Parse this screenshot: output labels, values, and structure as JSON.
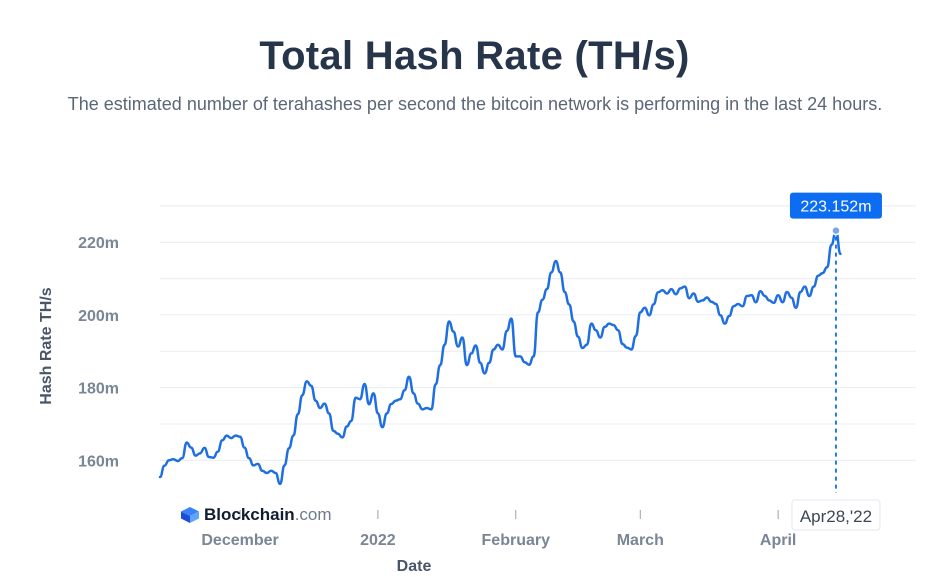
{
  "header": {
    "title": "Total Hash Rate (TH/s)",
    "subtitle": "The estimated number of terahashes per second the bitcoin network is performing in the last 24 hours."
  },
  "brand": {
    "name": "Blockchain",
    "tld": ".com",
    "icon": "blockchain-logo-icon"
  },
  "tooltip": {
    "value_label": "223.152m",
    "date_label": "Apr28,'22"
  },
  "colors": {
    "line": "#1f6fe0",
    "tooltip_bg": "#0c6cf2",
    "axis_text": "#7a8596",
    "grid": "#e9ecf0"
  },
  "chart_data": {
    "type": "line",
    "title": "Total Hash Rate (TH/s)",
    "ylabel": "Hash Rate TH/s",
    "xlabel": "Date",
    "x_tick_labels": [
      "December",
      "2022",
      "February",
      "March",
      "April"
    ],
    "y_tick_labels": [
      "160m",
      "180m",
      "200m",
      "220m"
    ],
    "y_ticks": [
      160,
      180,
      200,
      220
    ],
    "ylim": [
      151,
      233
    ],
    "xlim": [
      "2021-11-13",
      "2022-05-02"
    ],
    "x_tick_dates": [
      "2021-12-01",
      "2022-01-01",
      "2022-02-01",
      "2022-03-01",
      "2022-04-01"
    ],
    "grid": true,
    "y_unit": "m TH/s",
    "series": [
      {
        "values": [
          [
            "2021-11-13",
            155.4
          ],
          [
            "2021-11-14",
            158.5
          ],
          [
            "2021-11-15",
            160.0
          ],
          [
            "2021-11-16",
            160.3
          ],
          [
            "2021-11-17",
            159.8
          ],
          [
            "2021-11-18",
            160.6
          ],
          [
            "2021-11-19",
            164.9
          ],
          [
            "2021-11-20",
            163.5
          ],
          [
            "2021-11-21",
            161.3
          ],
          [
            "2021-11-22",
            161.9
          ],
          [
            "2021-11-23",
            163.4
          ],
          [
            "2021-11-24",
            160.9
          ],
          [
            "2021-11-25",
            160.7
          ],
          [
            "2021-11-26",
            162.4
          ],
          [
            "2021-11-27",
            165.5
          ],
          [
            "2021-11-28",
            166.8
          ],
          [
            "2021-11-29",
            166.1
          ],
          [
            "2021-11-30",
            166.8
          ],
          [
            "2021-12-01",
            166.5
          ],
          [
            "2021-12-02",
            163.5
          ],
          [
            "2021-12-03",
            160.6
          ],
          [
            "2021-12-04",
            158.6
          ],
          [
            "2021-12-05",
            159.0
          ],
          [
            "2021-12-06",
            157.1
          ],
          [
            "2021-12-07",
            156.5
          ],
          [
            "2021-12-08",
            157.1
          ],
          [
            "2021-12-09",
            156.5
          ],
          [
            "2021-12-10",
            153.5
          ],
          [
            "2021-12-11",
            158.6
          ],
          [
            "2021-12-12",
            163.3
          ],
          [
            "2021-12-13",
            166.8
          ],
          [
            "2021-12-14",
            172.7
          ],
          [
            "2021-12-15",
            177.9
          ],
          [
            "2021-12-16",
            181.7
          ],
          [
            "2021-12-17",
            180.5
          ],
          [
            "2021-12-18",
            176.4
          ],
          [
            "2021-12-19",
            174.4
          ],
          [
            "2021-12-20",
            175.6
          ],
          [
            "2021-12-21",
            172.9
          ],
          [
            "2021-12-22",
            168.1
          ],
          [
            "2021-12-23",
            167.3
          ],
          [
            "2021-12-24",
            166.3
          ],
          [
            "2021-12-25",
            169.3
          ],
          [
            "2021-12-26",
            170.8
          ],
          [
            "2021-12-27",
            177.2
          ],
          [
            "2021-12-28",
            176.8
          ],
          [
            "2021-12-29",
            181.0
          ],
          [
            "2021-12-30",
            175.4
          ],
          [
            "2021-12-31",
            178.4
          ],
          [
            "2022-01-01",
            172.9
          ],
          [
            "2022-01-02",
            169.1
          ],
          [
            "2022-01-03",
            172.9
          ],
          [
            "2022-01-04",
            175.5
          ],
          [
            "2022-01-05",
            176.4
          ],
          [
            "2022-01-06",
            176.8
          ],
          [
            "2022-01-07",
            179.3
          ],
          [
            "2022-01-08",
            183.0
          ],
          [
            "2022-01-09",
            178.4
          ],
          [
            "2022-01-10",
            175.6
          ],
          [
            "2022-01-11",
            174.0
          ],
          [
            "2022-01-12",
            174.4
          ],
          [
            "2022-01-13",
            174.0
          ],
          [
            "2022-01-14",
            180.9
          ],
          [
            "2022-01-15",
            186.2
          ],
          [
            "2022-01-16",
            191.8
          ],
          [
            "2022-01-17",
            198.2
          ],
          [
            "2022-01-18",
            195.4
          ],
          [
            "2022-01-19",
            191.3
          ],
          [
            "2022-01-20",
            193.8
          ],
          [
            "2022-01-21",
            186.2
          ],
          [
            "2022-01-22",
            189.4
          ],
          [
            "2022-01-23",
            191.6
          ],
          [
            "2022-01-24",
            186.8
          ],
          [
            "2022-01-25",
            183.9
          ],
          [
            "2022-01-26",
            186.8
          ],
          [
            "2022-01-27",
            190.5
          ],
          [
            "2022-01-28",
            191.8
          ],
          [
            "2022-01-29",
            190.5
          ],
          [
            "2022-01-30",
            195.6
          ],
          [
            "2022-01-31",
            199.0
          ],
          [
            "2022-02-01",
            188.6
          ],
          [
            "2022-02-02",
            188.6
          ],
          [
            "2022-02-03",
            187.0
          ],
          [
            "2022-02-04",
            186.3
          ],
          [
            "2022-02-05",
            188.6
          ],
          [
            "2022-02-06",
            200.7
          ],
          [
            "2022-02-07",
            204.2
          ],
          [
            "2022-02-08",
            207.1
          ],
          [
            "2022-02-09",
            211.7
          ],
          [
            "2022-02-10",
            214.8
          ],
          [
            "2022-02-11",
            211.7
          ],
          [
            "2022-02-12",
            206.3
          ],
          [
            "2022-02-13",
            202.9
          ],
          [
            "2022-02-14",
            198.2
          ],
          [
            "2022-02-15",
            194.0
          ],
          [
            "2022-02-16",
            190.9
          ],
          [
            "2022-02-17",
            191.8
          ],
          [
            "2022-02-18",
            197.6
          ],
          [
            "2022-02-19",
            195.8
          ],
          [
            "2022-02-20",
            193.8
          ],
          [
            "2022-02-21",
            196.7
          ],
          [
            "2022-02-22",
            197.6
          ],
          [
            "2022-02-23",
            197.2
          ],
          [
            "2022-02-24",
            195.8
          ],
          [
            "2022-02-25",
            192.0
          ],
          [
            "2022-02-26",
            191.0
          ],
          [
            "2022-02-27",
            190.5
          ],
          [
            "2022-02-28",
            194.2
          ],
          [
            "2022-03-01",
            200.7
          ],
          [
            "2022-03-02",
            202.0
          ],
          [
            "2022-03-03",
            199.9
          ],
          [
            "2022-03-04",
            202.9
          ],
          [
            "2022-03-05",
            206.2
          ],
          [
            "2022-03-06",
            206.8
          ],
          [
            "2022-03-07",
            205.9
          ],
          [
            "2022-03-08",
            207.1
          ],
          [
            "2022-03-09",
            205.7
          ],
          [
            "2022-03-10",
            207.3
          ],
          [
            "2022-03-11",
            207.8
          ],
          [
            "2022-03-12",
            204.6
          ],
          [
            "2022-03-13",
            205.9
          ],
          [
            "2022-03-14",
            203.6
          ],
          [
            "2022-03-15",
            204.0
          ],
          [
            "2022-03-16",
            204.8
          ],
          [
            "2022-03-17",
            203.6
          ],
          [
            "2022-03-18",
            203.0
          ],
          [
            "2022-03-19",
            199.9
          ],
          [
            "2022-03-20",
            197.6
          ],
          [
            "2022-03-21",
            199.7
          ],
          [
            "2022-03-22",
            202.4
          ],
          [
            "2022-03-23",
            203.0
          ],
          [
            "2022-03-24",
            202.4
          ],
          [
            "2022-03-25",
            205.2
          ],
          [
            "2022-03-26",
            205.4
          ],
          [
            "2022-03-27",
            203.5
          ],
          [
            "2022-03-28",
            206.5
          ],
          [
            "2022-03-29",
            205.2
          ],
          [
            "2022-03-30",
            204.0
          ],
          [
            "2022-03-31",
            203.3
          ],
          [
            "2022-04-01",
            205.4
          ],
          [
            "2022-04-02",
            203.5
          ],
          [
            "2022-04-03",
            206.3
          ],
          [
            "2022-04-04",
            204.7
          ],
          [
            "2022-04-05",
            202.0
          ],
          [
            "2022-04-06",
            206.3
          ],
          [
            "2022-04-07",
            207.8
          ],
          [
            "2022-04-08",
            205.2
          ],
          [
            "2022-04-09",
            207.8
          ],
          [
            "2022-04-10",
            210.8
          ],
          [
            "2022-04-11",
            211.5
          ],
          [
            "2022-04-12",
            213.1
          ],
          [
            "2022-04-13",
            219.3
          ],
          [
            "2022-04-14",
            223.2
          ],
          [
            "2022-04-15",
            216.8
          ]
        ]
      }
    ]
  }
}
